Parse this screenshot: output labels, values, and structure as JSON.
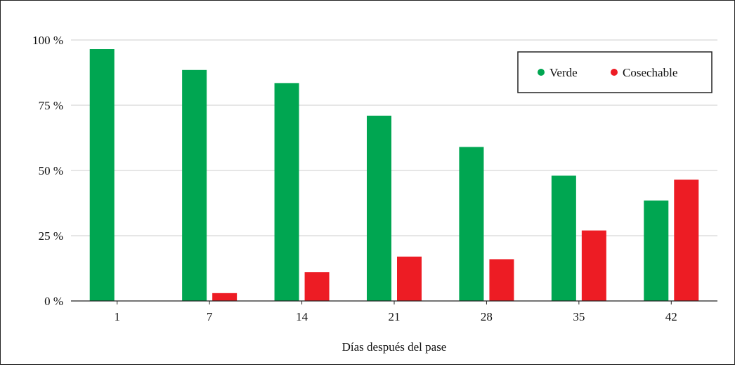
{
  "chart_data": {
    "type": "bar",
    "title": "",
    "xlabel": "Días después del pase",
    "ylabel": "",
    "categories": [
      "1",
      "7",
      "14",
      "21",
      "28",
      "35",
      "42"
    ],
    "series": [
      {
        "name": "Verde",
        "color": "#00a651",
        "values": [
          96.5,
          88.5,
          83.5,
          71,
          59,
          48,
          38.5
        ]
      },
      {
        "name": "Cosechable",
        "color": "#ed1c24",
        "values": [
          0,
          3,
          11,
          17,
          16,
          27,
          46.5
        ]
      }
    ],
    "ylim": [
      0,
      100
    ],
    "yticks": [
      0,
      25,
      50,
      75,
      100
    ],
    "ytick_labels": [
      "0 %",
      "25 %",
      "50 %",
      "75 %",
      "100 %"
    ],
    "grid": true,
    "legend_position": "top-right"
  }
}
